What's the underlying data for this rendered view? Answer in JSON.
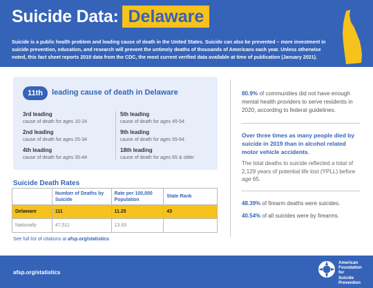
{
  "header": {
    "title": "Suicide Data:",
    "state": "Delaware",
    "intro": "Suicide is a public health problem and leading cause of death in the United States. Suicide can also be prevented – more investment in suicide prevention, education, and research will prevent the untimely deaths of thousands of Americans each year. Unless otherwise noted, this fact sheet reports 2019 data from the CDC, the most current verified data available at time of publication (January 2021)."
  },
  "ranking": {
    "rank": "11th",
    "label": "leading cause of death in Delaware",
    "items": [
      {
        "title": "3rd leading",
        "sub": "cause of death for ages 10-24"
      },
      {
        "title": "2nd leading",
        "sub": "cause of death for ages 25-34"
      },
      {
        "title": "4th leading",
        "sub": "cause of death for ages 35-44"
      },
      {
        "title": "5th leading",
        "sub": "cause of death for ages 45-54"
      },
      {
        "title": "9th leading",
        "sub": "cause of death for ages 55-64"
      },
      {
        "title": "18th leading",
        "sub": "cause of death for ages 65 & older"
      }
    ]
  },
  "rates": {
    "title": "Suicide Death Rates",
    "headers": [
      "",
      "Number of Deaths by Suicide",
      "Rate per 100,000 Population",
      "State Rank"
    ],
    "rows": [
      [
        "Delaware",
        "111",
        "11.25",
        "43"
      ],
      [
        "Nationally",
        "47,511",
        "13.93",
        ""
      ]
    ]
  },
  "citation": {
    "text": "See full list of citations at",
    "link": "afsp.org/statistics"
  },
  "facts": {
    "providers_pct": "80.9%",
    "providers_text": "of communities did not have enough mental health providers to serve residents in 2020, according to federal guidelines.",
    "alcohol_text": "Over three times as many people died by suicide in 2019 than in alcohol related motor vehicle accidents.",
    "ypll_text": "The total deaths to suicide reflected a total of 2,129 years of potential life lost (YPLL) before age 65.",
    "firearm_pct": "48.39%",
    "firearm_text": "of firearm deaths were suicides.",
    "suicide_firearm_pct": "40.54%",
    "suicide_firearm_text": "of all suicides were by firearms."
  },
  "footer": {
    "url": "afsp.org/statistics",
    "logo_lines": [
      "American",
      "Foundation",
      "for",
      "Suicide",
      "Prevention"
    ]
  },
  "colors": {
    "brand_blue": "#3563b8",
    "accent_yellow": "#f7c21b",
    "card_bg": "#e7eefa"
  }
}
